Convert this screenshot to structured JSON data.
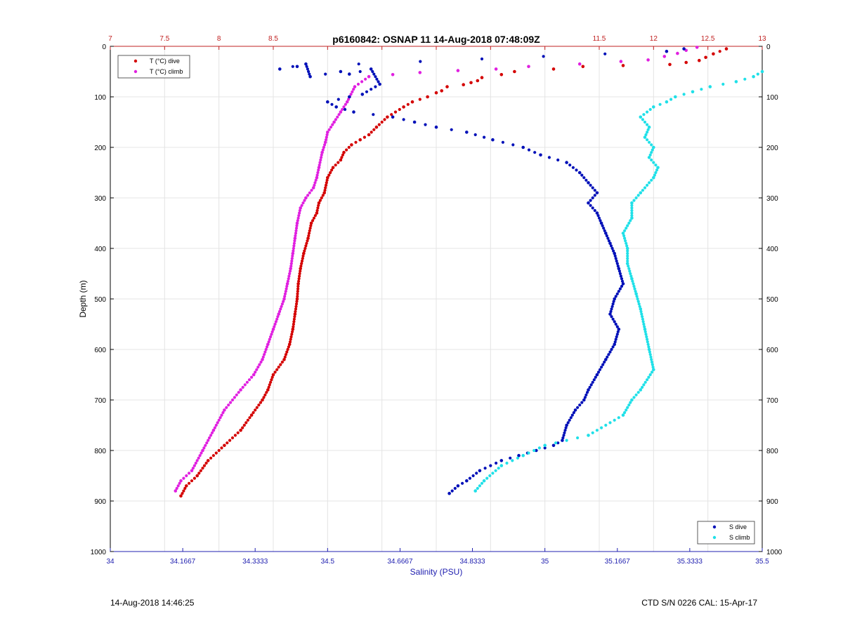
{
  "colors": {
    "t_dive": "#d40000",
    "t_climb": "#e020e0",
    "s_dive": "#0010b8",
    "s_climb": "#20e0e8",
    "top_axis": "#c02020",
    "bottom_axis": "#2020b0",
    "grid": "#e4e4e4"
  },
  "footer": {
    "left": "14-Aug-2018 14:46:25",
    "right": "CTD S/N 0226  CAL: 15-Apr-17"
  },
  "chart_data": {
    "type": "scatter",
    "title": "p6160842: OSNAP 11 14-Aug-2018 07:48:09Z",
    "ylabel": "Depth (m)",
    "xlabel_bottom": "Salinity (PSU)",
    "xlabel_top": "",
    "y_range": [
      0,
      1000
    ],
    "y_reversed": true,
    "y_ticks": [
      0,
      100,
      200,
      300,
      400,
      500,
      600,
      700,
      800,
      900,
      1000
    ],
    "x_top_range": [
      7,
      13
    ],
    "x_top_ticks": [
      7,
      7.5,
      8,
      8.5,
      9,
      9.5,
      10,
      10.5,
      11,
      11.5,
      12,
      12.5,
      13
    ],
    "x_top_ticklabels": [
      "7",
      "7.5",
      "8",
      "8.5",
      "",
      "",
      "",
      "",
      "",
      "11.5",
      "12",
      "12.5",
      "13"
    ],
    "x_bottom_range": [
      34,
      35.5
    ],
    "x_bottom_ticks": [
      34,
      34.1667,
      34.3333,
      34.5,
      34.6667,
      34.8333,
      35,
      35.1667,
      35.3333,
      35.5
    ],
    "x_bottom_ticklabels": [
      "34",
      "34.1667",
      "34.3333",
      "34.5",
      "34.6667",
      "34.8333",
      "35",
      "35.1667",
      "35.3333",
      "35.5"
    ],
    "grid": true,
    "legend_temperature": {
      "position": "top-left",
      "entries": [
        "T (°C) dive",
        "T (°C) climb"
      ]
    },
    "legend_salinity": {
      "position": "bottom-right",
      "entries": [
        "S dive",
        "S climb"
      ]
    },
    "series": [
      {
        "name": "T (°C) dive",
        "axis": "top",
        "x": [
          12.67,
          12.55,
          12.48,
          12.42,
          12.3,
          12.15,
          11.72,
          11.35,
          11.08,
          10.72,
          10.6,
          10.42,
          10.38,
          10.32,
          10.25,
          10.1,
          10.05,
          10.0,
          9.92,
          9.78,
          9.7,
          9.55,
          9.45,
          9.38,
          9.3,
          9.22,
          9.15,
          9.12,
          9.05,
          9.0,
          8.97,
          8.92,
          8.9,
          8.85,
          8.82,
          8.78,
          8.75,
          8.73,
          8.72,
          8.7,
          8.68,
          8.65,
          8.6,
          8.5,
          8.45,
          8.4,
          8.3,
          8.2,
          8.05,
          7.9,
          7.8,
          7.7,
          7.65
        ],
        "y": [
          5,
          15,
          22,
          28,
          32,
          36,
          38,
          40,
          45,
          50,
          56,
          62,
          68,
          72,
          76,
          80,
          88,
          92,
          100,
          110,
          120,
          140,
          160,
          175,
          185,
          195,
          210,
          225,
          240,
          260,
          290,
          310,
          330,
          350,
          380,
          410,
          440,
          470,
          500,
          530,
          560,
          590,
          620,
          650,
          680,
          700,
          730,
          760,
          790,
          820,
          850,
          870,
          890
        ]
      },
      {
        "name": "T (°C) climb",
        "axis": "top",
        "x": [
          12.4,
          12.3,
          12.22,
          12.1,
          11.95,
          11.7,
          11.32,
          10.85,
          10.55,
          10.2,
          9.85,
          9.6,
          9.38,
          9.25,
          9.18,
          9.12,
          9.06,
          9.0,
          8.98,
          8.95,
          8.92,
          8.9,
          8.87,
          8.8,
          8.75,
          8.72,
          8.7,
          8.68,
          8.66,
          8.63,
          8.6,
          8.55,
          8.5,
          8.45,
          8.4,
          8.32,
          8.2,
          8.05,
          7.95,
          7.85,
          7.75,
          7.65,
          7.6
        ],
        "y": [
          2,
          8,
          14,
          20,
          27,
          30,
          35,
          40,
          45,
          48,
          52,
          56,
          60,
          80,
          110,
          130,
          150,
          170,
          190,
          210,
          240,
          260,
          280,
          300,
          320,
          350,
          380,
          410,
          440,
          470,
          500,
          530,
          560,
          590,
          620,
          650,
          680,
          720,
          760,
          800,
          840,
          860,
          880
        ]
      },
      {
        "name": "S dive",
        "axis": "bottom",
        "x": [
          35.32,
          35.28,
          34.43,
          34.39,
          34.45,
          34.46,
          34.53,
          34.55,
          34.6,
          34.62,
          34.58,
          34.55,
          34.5,
          34.52,
          34.56,
          34.65,
          34.7,
          34.75,
          34.82,
          34.88,
          34.95,
          34.99,
          35.05,
          35.08,
          35.1,
          35.12,
          35.1,
          35.12,
          35.13,
          35.14,
          35.15,
          35.16,
          35.17,
          35.18,
          35.16,
          35.15,
          35.17,
          35.16,
          35.14,
          35.12,
          35.1,
          35.09,
          35.07,
          35.05,
          35.04,
          35.02,
          34.98,
          34.94,
          34.9,
          34.85,
          34.82,
          34.8,
          34.78
        ],
        "y": [
          5,
          10,
          40,
          45,
          35,
          60,
          50,
          55,
          45,
          75,
          95,
          100,
          110,
          120,
          130,
          140,
          150,
          160,
          170,
          185,
          200,
          215,
          230,
          250,
          270,
          290,
          310,
          330,
          350,
          370,
          390,
          410,
          440,
          470,
          500,
          530,
          560,
          590,
          620,
          650,
          680,
          700,
          720,
          750,
          780,
          790,
          800,
          810,
          820,
          840,
          860,
          870,
          885
        ]
      },
      {
        "name": "S climb",
        "axis": "bottom",
        "x": [
          35.5,
          35.48,
          35.44,
          35.38,
          35.34,
          35.3,
          35.28,
          35.25,
          35.22,
          35.24,
          35.23,
          35.25,
          35.24,
          35.26,
          35.25,
          35.22,
          35.2,
          35.2,
          35.18,
          35.19,
          35.19,
          35.2,
          35.21,
          35.22,
          35.23,
          35.24,
          35.25,
          35.22,
          35.2,
          35.18,
          35.1,
          35.0,
          34.95,
          34.9,
          34.86,
          34.84
        ],
        "y": [
          50,
          60,
          70,
          80,
          90,
          100,
          110,
          120,
          140,
          160,
          180,
          200,
          220,
          240,
          260,
          290,
          310,
          340,
          370,
          400,
          430,
          460,
          490,
          520,
          560,
          600,
          640,
          680,
          700,
          730,
          770,
          790,
          810,
          830,
          860,
          880
        ]
      }
    ]
  }
}
